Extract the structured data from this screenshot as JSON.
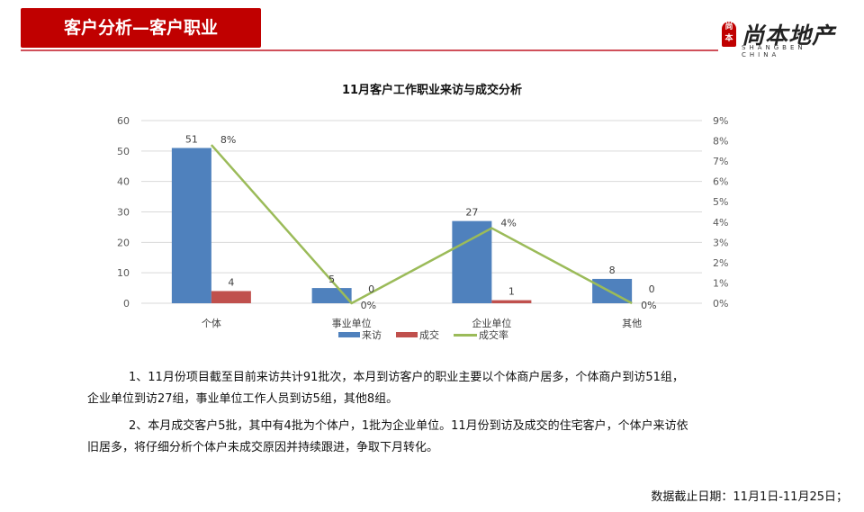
{
  "header": {
    "title": "客户分析—客户职业",
    "logo": {
      "seal_text": "尚本",
      "brand_cn": "尚本地产",
      "brand_en": "SHANGBEN CHINA"
    }
  },
  "chart_data": {
    "type": "bar+line",
    "title": "11月客户工作职业来访与成交分析",
    "categories": [
      "个体",
      "事业单位",
      "企业单位",
      "其他"
    ],
    "series": [
      {
        "name": "来访",
        "type": "bar",
        "axis": "left",
        "color": "#4f81bd",
        "values": [
          51,
          5,
          27,
          8
        ]
      },
      {
        "name": "成交",
        "type": "bar",
        "axis": "left",
        "color": "#c0504d",
        "values": [
          4,
          0,
          1,
          0
        ]
      },
      {
        "name": "成交率",
        "type": "line",
        "axis": "right",
        "color": "#9bbb59",
        "values": [
          0.078,
          0,
          0.037,
          0
        ],
        "labels": [
          "8%",
          "0%",
          "4%",
          "0%"
        ]
      }
    ],
    "left_axis": {
      "ylim": [
        0,
        60
      ],
      "ticks": [
        "0",
        "10",
        "20",
        "30",
        "40",
        "50",
        "60"
      ]
    },
    "right_axis": {
      "ylim": [
        0,
        0.09
      ],
      "ticks": [
        "0%",
        "1%",
        "2%",
        "3%",
        "4%",
        "5%",
        "6%",
        "7%",
        "8%",
        "9%"
      ]
    },
    "grid": true,
    "legend_position": "bottom",
    "legend": [
      "来访",
      "成交",
      "成交率"
    ]
  },
  "text": {
    "p1_line1": "1、11月份项目截至目前来访共计91批次，本月到访客户的职业主要以个体商户居多，个体商户到访51组，",
    "p1_line2": "企业单位到访27组，事业单位工作人员到访5组，其他8组。",
    "p2_line1": "2、本月成交客户5批，其中有4批为个体户，1批为企业单位。11月份到访及成交的住宅客户，个体户来访依",
    "p2_line2": "旧居多，将仔细分析个体户未成交原因并持续跟进，争取下月转化。",
    "footnote": "数据截止日期：11月1日-11月25日；"
  }
}
